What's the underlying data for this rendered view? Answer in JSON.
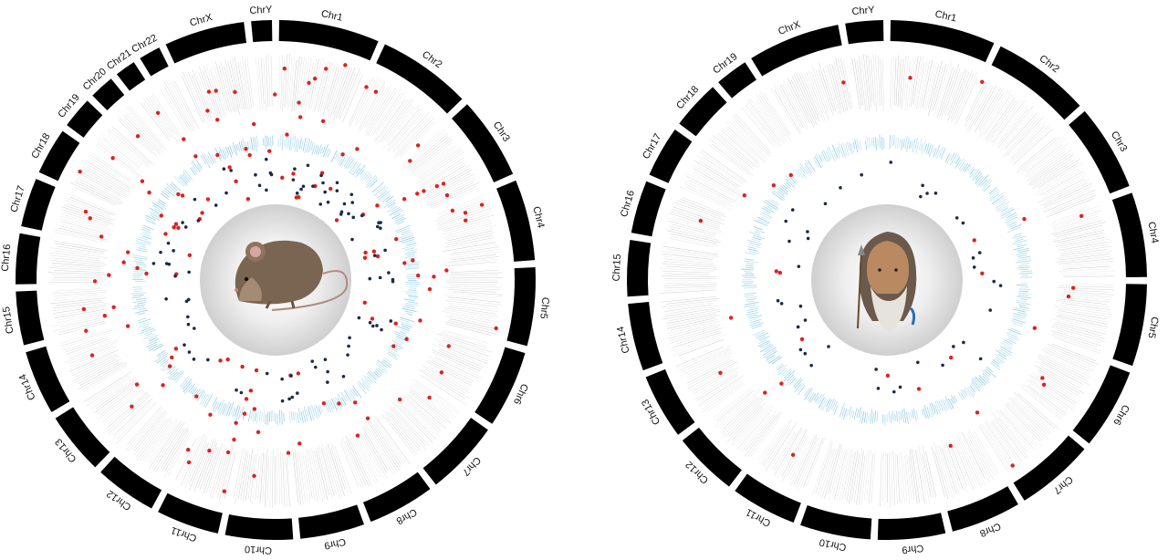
{
  "figure": {
    "colors": {
      "ideogram": "#000000",
      "snp_track": "#b4b4b4",
      "expression_track": "#7cc4e0",
      "red_marks": "#e0201c",
      "navy_marks": "#1c2a4a",
      "center": "#d8d8d8"
    },
    "panels": [
      {
        "id": "mouse",
        "organism_icon": "mouse-icon",
        "chromosomes": [
          {
            "label": "Chr1",
            "size": 195
          },
          {
            "label": "Chr2",
            "size": 182
          },
          {
            "label": "Chr3",
            "size": 160
          },
          {
            "label": "Chr4",
            "size": 157
          },
          {
            "label": "Chr5",
            "size": 152
          },
          {
            "label": "Chr6",
            "size": 150
          },
          {
            "label": "Chr7",
            "size": 145
          },
          {
            "label": "Chr8",
            "size": 130
          },
          {
            "label": "Chr9",
            "size": 125
          },
          {
            "label": "Chr10",
            "size": 131
          },
          {
            "label": "Chr11",
            "size": 122
          },
          {
            "label": "Chr12",
            "size": 120
          },
          {
            "label": "Chr13",
            "size": 121
          },
          {
            "label": "Chr14",
            "size": 125
          },
          {
            "label": "Chr15",
            "size": 104
          },
          {
            "label": "Chr16",
            "size": 98
          },
          {
            "label": "Chr17",
            "size": 95
          },
          {
            "label": "Chr18",
            "size": 91
          },
          {
            "label": "Chr19",
            "size": 61
          },
          {
            "label": "Chr20",
            "size": 48
          },
          {
            "label": "Chr21",
            "size": 40
          },
          {
            "label": "Chr22",
            "size": 42
          },
          {
            "label": "ChrX",
            "size": 156
          },
          {
            "label": "ChrY",
            "size": 40
          }
        ]
      },
      {
        "id": "human",
        "organism_icon": "man-portrait-icon",
        "chromosomes": [
          {
            "label": "Chr1",
            "size": 195
          },
          {
            "label": "Chr2",
            "size": 182
          },
          {
            "label": "Chr3",
            "size": 160
          },
          {
            "label": "Chr4",
            "size": 157
          },
          {
            "label": "Chr5",
            "size": 152
          },
          {
            "label": "Chr6",
            "size": 150
          },
          {
            "label": "Chr7",
            "size": 145
          },
          {
            "label": "Chr8",
            "size": 130
          },
          {
            "label": "Chr9",
            "size": 125
          },
          {
            "label": "Chr10",
            "size": 131
          },
          {
            "label": "Chr11",
            "size": 122
          },
          {
            "label": "Chr12",
            "size": 120
          },
          {
            "label": "Chr13",
            "size": 121
          },
          {
            "label": "Chr14",
            "size": 125
          },
          {
            "label": "Chr15",
            "size": 104
          },
          {
            "label": "Chr16",
            "size": 98
          },
          {
            "label": "Chr17",
            "size": 95
          },
          {
            "label": "Chr18",
            "size": 91
          },
          {
            "label": "Chr19",
            "size": 61
          },
          {
            "label": "ChrX",
            "size": 171
          },
          {
            "label": "ChrY",
            "size": 70
          }
        ]
      }
    ]
  }
}
